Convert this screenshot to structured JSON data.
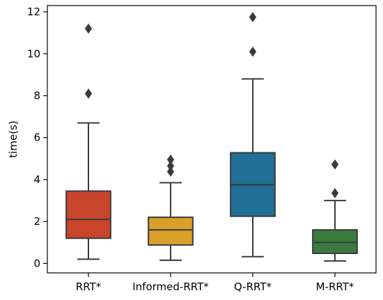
{
  "chart_data": {
    "type": "box",
    "title": "",
    "xlabel": "",
    "ylabel": "time(s)",
    "ylim": [
      -0.45,
      12.3
    ],
    "yticks": [
      0,
      2,
      4,
      6,
      8,
      10,
      12
    ],
    "grid": false,
    "categories": [
      "RRT*",
      "Informed-RRT*",
      "Q-RRT*",
      "M-RRT*"
    ],
    "series": [
      {
        "category": "RRT*",
        "color": "#c8442a",
        "whisker_low": 0.2,
        "q1": 1.2,
        "median": 2.1,
        "q3": 3.45,
        "whisker_high": 6.7,
        "outliers": [
          8.1,
          11.2
        ]
      },
      {
        "category": "Informed-RRT*",
        "color": "#d9a02a",
        "whisker_low": 0.15,
        "q1": 0.88,
        "median": 1.6,
        "q3": 2.2,
        "whisker_high": 3.85,
        "outliers": [
          4.38,
          4.65,
          4.95
        ]
      },
      {
        "category": "Q-RRT*",
        "color": "#1f6f96",
        "whisker_low": 0.32,
        "q1": 2.25,
        "median": 3.75,
        "q3": 5.28,
        "whisker_high": 8.8,
        "outliers": [
          10.1,
          11.75
        ]
      },
      {
        "category": "M-RRT*",
        "color": "#3a7a3e",
        "whisker_low": 0.12,
        "q1": 0.48,
        "median": 1.0,
        "q3": 1.6,
        "whisker_high": 3.0,
        "outliers": [
          3.35,
          4.72
        ]
      }
    ]
  }
}
